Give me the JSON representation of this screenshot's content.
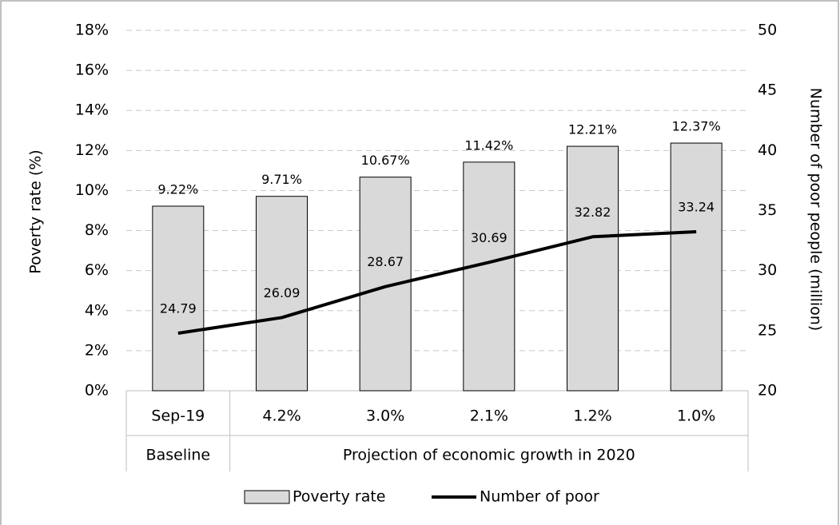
{
  "chart_data": {
    "type": "bar-line",
    "categories": [
      "Sep-19",
      "4.2%",
      "3.0%",
      "2.1%",
      "1.2%",
      "1.0%"
    ],
    "category_groups": [
      {
        "label": "Baseline",
        "count": 1
      },
      {
        "label": "Projection of economic growth in 2020",
        "count": 5
      }
    ],
    "y_label": "Poverty rate (%)",
    "y2_label": "Number of poor people (million)",
    "ylim": [
      0,
      18
    ],
    "yticks": [
      {
        "value": 0,
        "label": "0%"
      },
      {
        "value": 2,
        "label": "2%"
      },
      {
        "value": 4,
        "label": "4%"
      },
      {
        "value": 6,
        "label": "6%"
      },
      {
        "value": 8,
        "label": "8%"
      },
      {
        "value": 10,
        "label": "10%"
      },
      {
        "value": 12,
        "label": "12%"
      },
      {
        "value": 14,
        "label": "14%"
      },
      {
        "value": 16,
        "label": "16%"
      },
      {
        "value": 18,
        "label": "18%"
      }
    ],
    "y2lim": [
      20,
      50
    ],
    "y2ticks": [
      20,
      25,
      30,
      35,
      40,
      45,
      50
    ],
    "grid": true,
    "legend_position": "bottom",
    "series": [
      {
        "name": "Poverty rate",
        "type": "bar",
        "color": "#d9d9d9",
        "values": [
          9.22,
          9.71,
          10.67,
          11.42,
          12.21,
          12.37
        ],
        "value_labels": [
          "9.22%",
          "9.71%",
          "10.67%",
          "11.42%",
          "12.21%",
          "12.37%"
        ]
      },
      {
        "name": "Number of poor",
        "type": "line",
        "axis": "y2",
        "color": "#000000",
        "values": [
          24.79,
          26.09,
          28.67,
          30.69,
          32.82,
          33.24
        ],
        "value_labels": [
          "24.79",
          "26.09",
          "28.67",
          "30.69",
          "32.82",
          "33.24"
        ]
      }
    ]
  }
}
